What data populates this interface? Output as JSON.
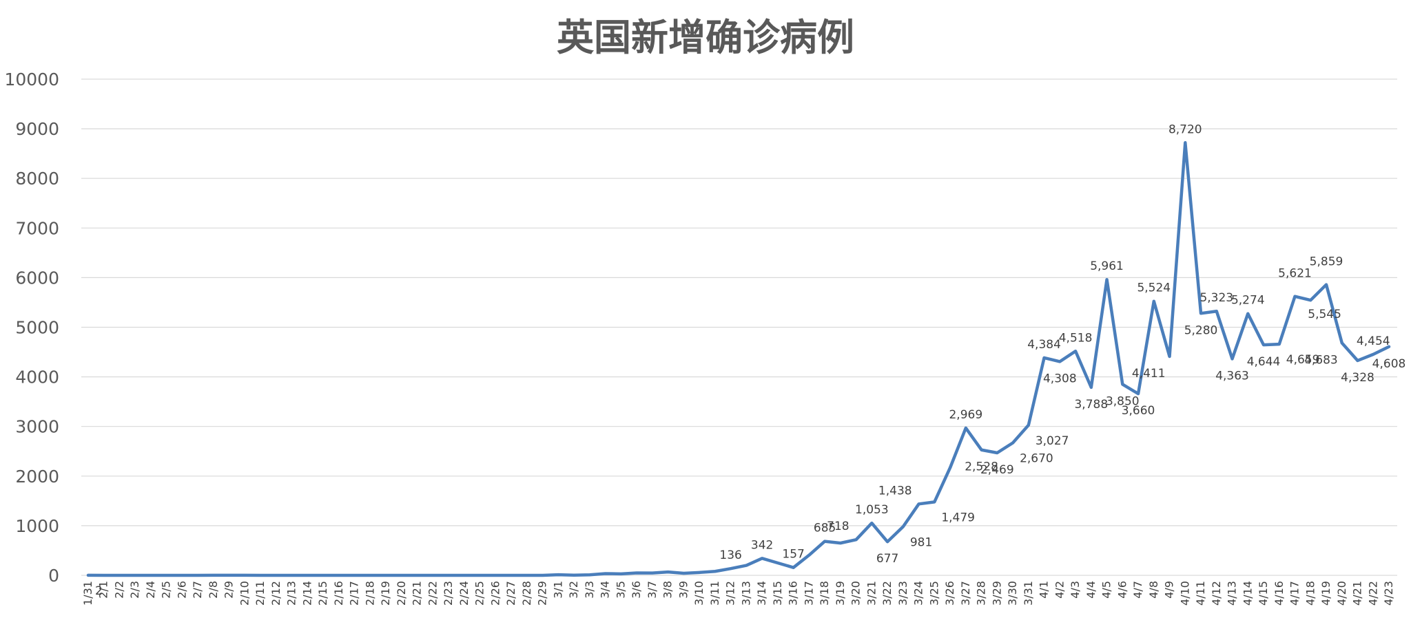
{
  "chart_data": {
    "type": "line",
    "title": "英国新增确诊病例",
    "xlabel": "",
    "ylabel": "",
    "ylim": [
      0,
      10000
    ],
    "yticks": [
      0,
      1000,
      2000,
      3000,
      4000,
      5000,
      6000,
      7000,
      8000,
      9000,
      10000
    ],
    "grid": true,
    "legend": "none",
    "colors": {
      "line": "#4a7ebb",
      "grid": "#d9d9d9",
      "text": "#595959"
    },
    "categories": [
      "1/31",
      "2/1",
      "2/2",
      "2/3",
      "2/4",
      "2/5",
      "2/6",
      "2/7",
      "2/8",
      "2/9",
      "2/10",
      "2/11",
      "2/12",
      "2/13",
      "2/14",
      "2/15",
      "2/16",
      "2/17",
      "2/18",
      "2/19",
      "2/20",
      "2/21",
      "2/22",
      "2/23",
      "2/24",
      "2/25",
      "2/26",
      "2/27",
      "2/28",
      "2/29",
      "3/1",
      "3/2",
      "3/3",
      "3/4",
      "3/5",
      "3/6",
      "3/7",
      "3/8",
      "3/9",
      "3/10",
      "3/11",
      "3/12",
      "3/13",
      "3/14",
      "3/15",
      "3/16",
      "3/17",
      "3/18",
      "3/19",
      "3/20",
      "3/21",
      "3/22",
      "3/23",
      "3/24",
      "3/25",
      "3/26",
      "3/27",
      "3/28",
      "3/29",
      "3/30",
      "3/31",
      "4/1",
      "4/2",
      "4/3",
      "4/4",
      "4/5",
      "4/6",
      "4/7",
      "4/8",
      "4/9",
      "4/10",
      "4/11",
      "4/12",
      "4/13",
      "4/14",
      "4/15",
      "4/16",
      "4/17",
      "4/18",
      "4/19",
      "4/20",
      "4/21",
      "4/22",
      "4/23"
    ],
    "values": [
      2,
      0,
      0,
      0,
      0,
      0,
      0,
      0,
      1,
      1,
      1,
      0,
      0,
      0,
      0,
      0,
      0,
      0,
      0,
      0,
      0,
      0,
      0,
      0,
      0,
      0,
      0,
      0,
      0,
      0,
      12,
      4,
      11,
      35,
      30,
      48,
      46,
      67,
      41,
      58,
      80,
      136,
      200,
      342,
      250,
      157,
      407,
      685,
      650,
      718,
      1053,
      677,
      981,
      1438,
      1479,
      2169,
      2969,
      2528,
      2469,
      2670,
      3027,
      4384,
      4308,
      4518,
      3788,
      5961,
      3850,
      3660,
      5524,
      4411,
      8720,
      5280,
      5323,
      4363,
      5274,
      4644,
      4659,
      5621,
      5545,
      5859,
      4683,
      4328,
      4454,
      4608
    ],
    "data_labels": [
      {
        "index": 0,
        "text": "2",
        "pos": "below-right"
      },
      {
        "index": 41,
        "text": "136",
        "pos": "above"
      },
      {
        "index": 43,
        "text": "342",
        "pos": "above"
      },
      {
        "index": 45,
        "text": "157",
        "pos": "above"
      },
      {
        "index": 47,
        "text": "685",
        "pos": "above"
      },
      {
        "index": 49,
        "text": "718",
        "pos": "above-left"
      },
      {
        "index": 50,
        "text": "1,053",
        "pos": "above"
      },
      {
        "index": 51,
        "text": "677",
        "pos": "below"
      },
      {
        "index": 52,
        "text": "981",
        "pos": "below-right"
      },
      {
        "index": 53,
        "text": "1,438",
        "pos": "above-left"
      },
      {
        "index": 54,
        "text": "1,479",
        "pos": "below-right"
      },
      {
        "index": 56,
        "text": "2,969",
        "pos": "above"
      },
      {
        "index": 57,
        "text": "2,528",
        "pos": "below"
      },
      {
        "index": 58,
        "text": "2,469",
        "pos": "below"
      },
      {
        "index": 59,
        "text": "2,670",
        "pos": "below-right"
      },
      {
        "index": 60,
        "text": "3,027",
        "pos": "below-right"
      },
      {
        "index": 61,
        "text": "4,384",
        "pos": "above"
      },
      {
        "index": 62,
        "text": "4,308",
        "pos": "below"
      },
      {
        "index": 63,
        "text": "4,518",
        "pos": "above"
      },
      {
        "index": 64,
        "text": "3,788",
        "pos": "below"
      },
      {
        "index": 65,
        "text": "5,961",
        "pos": "above"
      },
      {
        "index": 66,
        "text": "3,850",
        "pos": "below"
      },
      {
        "index": 67,
        "text": "3,660",
        "pos": "below"
      },
      {
        "index": 68,
        "text": "5,524",
        "pos": "above"
      },
      {
        "index": 69,
        "text": "4,411",
        "pos": "below-left"
      },
      {
        "index": 70,
        "text": "8,720",
        "pos": "above"
      },
      {
        "index": 71,
        "text": "5,280",
        "pos": "below"
      },
      {
        "index": 72,
        "text": "5,323",
        "pos": "above"
      },
      {
        "index": 73,
        "text": "4,363",
        "pos": "below"
      },
      {
        "index": 74,
        "text": "5,274",
        "pos": "above"
      },
      {
        "index": 75,
        "text": "4,644",
        "pos": "below"
      },
      {
        "index": 76,
        "text": "4,659",
        "pos": "below-right"
      },
      {
        "index": 77,
        "text": "5,621",
        "pos": "above-high"
      },
      {
        "index": 78,
        "text": "5,545",
        "pos": "right"
      },
      {
        "index": 79,
        "text": "5,859",
        "pos": "above-high"
      },
      {
        "index": 80,
        "text": "4,683",
        "pos": "below-left"
      },
      {
        "index": 81,
        "text": "4,328",
        "pos": "below"
      },
      {
        "index": 82,
        "text": "4,454",
        "pos": "above"
      },
      {
        "index": 83,
        "text": "4,608",
        "pos": "below"
      }
    ]
  }
}
